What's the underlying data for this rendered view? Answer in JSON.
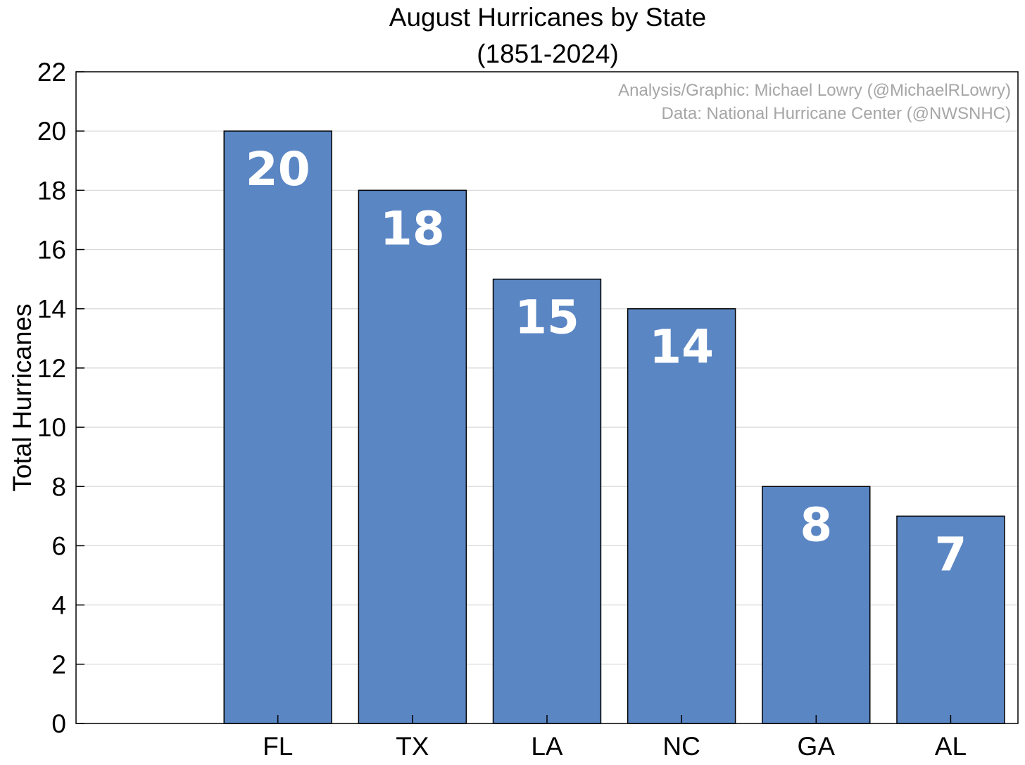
{
  "chart_data": {
    "type": "bar",
    "title": "August Hurricanes by State",
    "subtitle": "(1851-2024)",
    "categories": [
      "FL",
      "TX",
      "LA",
      "NC",
      "GA",
      "AL"
    ],
    "values": [
      20,
      18,
      15,
      14,
      8,
      7
    ],
    "data_labels": [
      "20",
      "18",
      "15",
      "14",
      "8",
      "7"
    ],
    "xlabel": "",
    "ylabel": "Total Hurricanes",
    "ylim": [
      0,
      22
    ],
    "yticks": [
      0,
      2,
      4,
      6,
      8,
      10,
      12,
      14,
      16,
      18,
      20,
      22
    ],
    "ytick_labels": [
      "0",
      "2",
      "4",
      "6",
      "8",
      "10",
      "12",
      "14",
      "16",
      "18",
      "20",
      "22"
    ],
    "grid": true,
    "bar_color": "#5b86c4",
    "credits": [
      "Analysis/Graphic: Michael Lowry (@MichaelRLowry)",
      "Data: National Hurricane Center (@NWSNHC)"
    ],
    "credit_placement": "top-right"
  }
}
